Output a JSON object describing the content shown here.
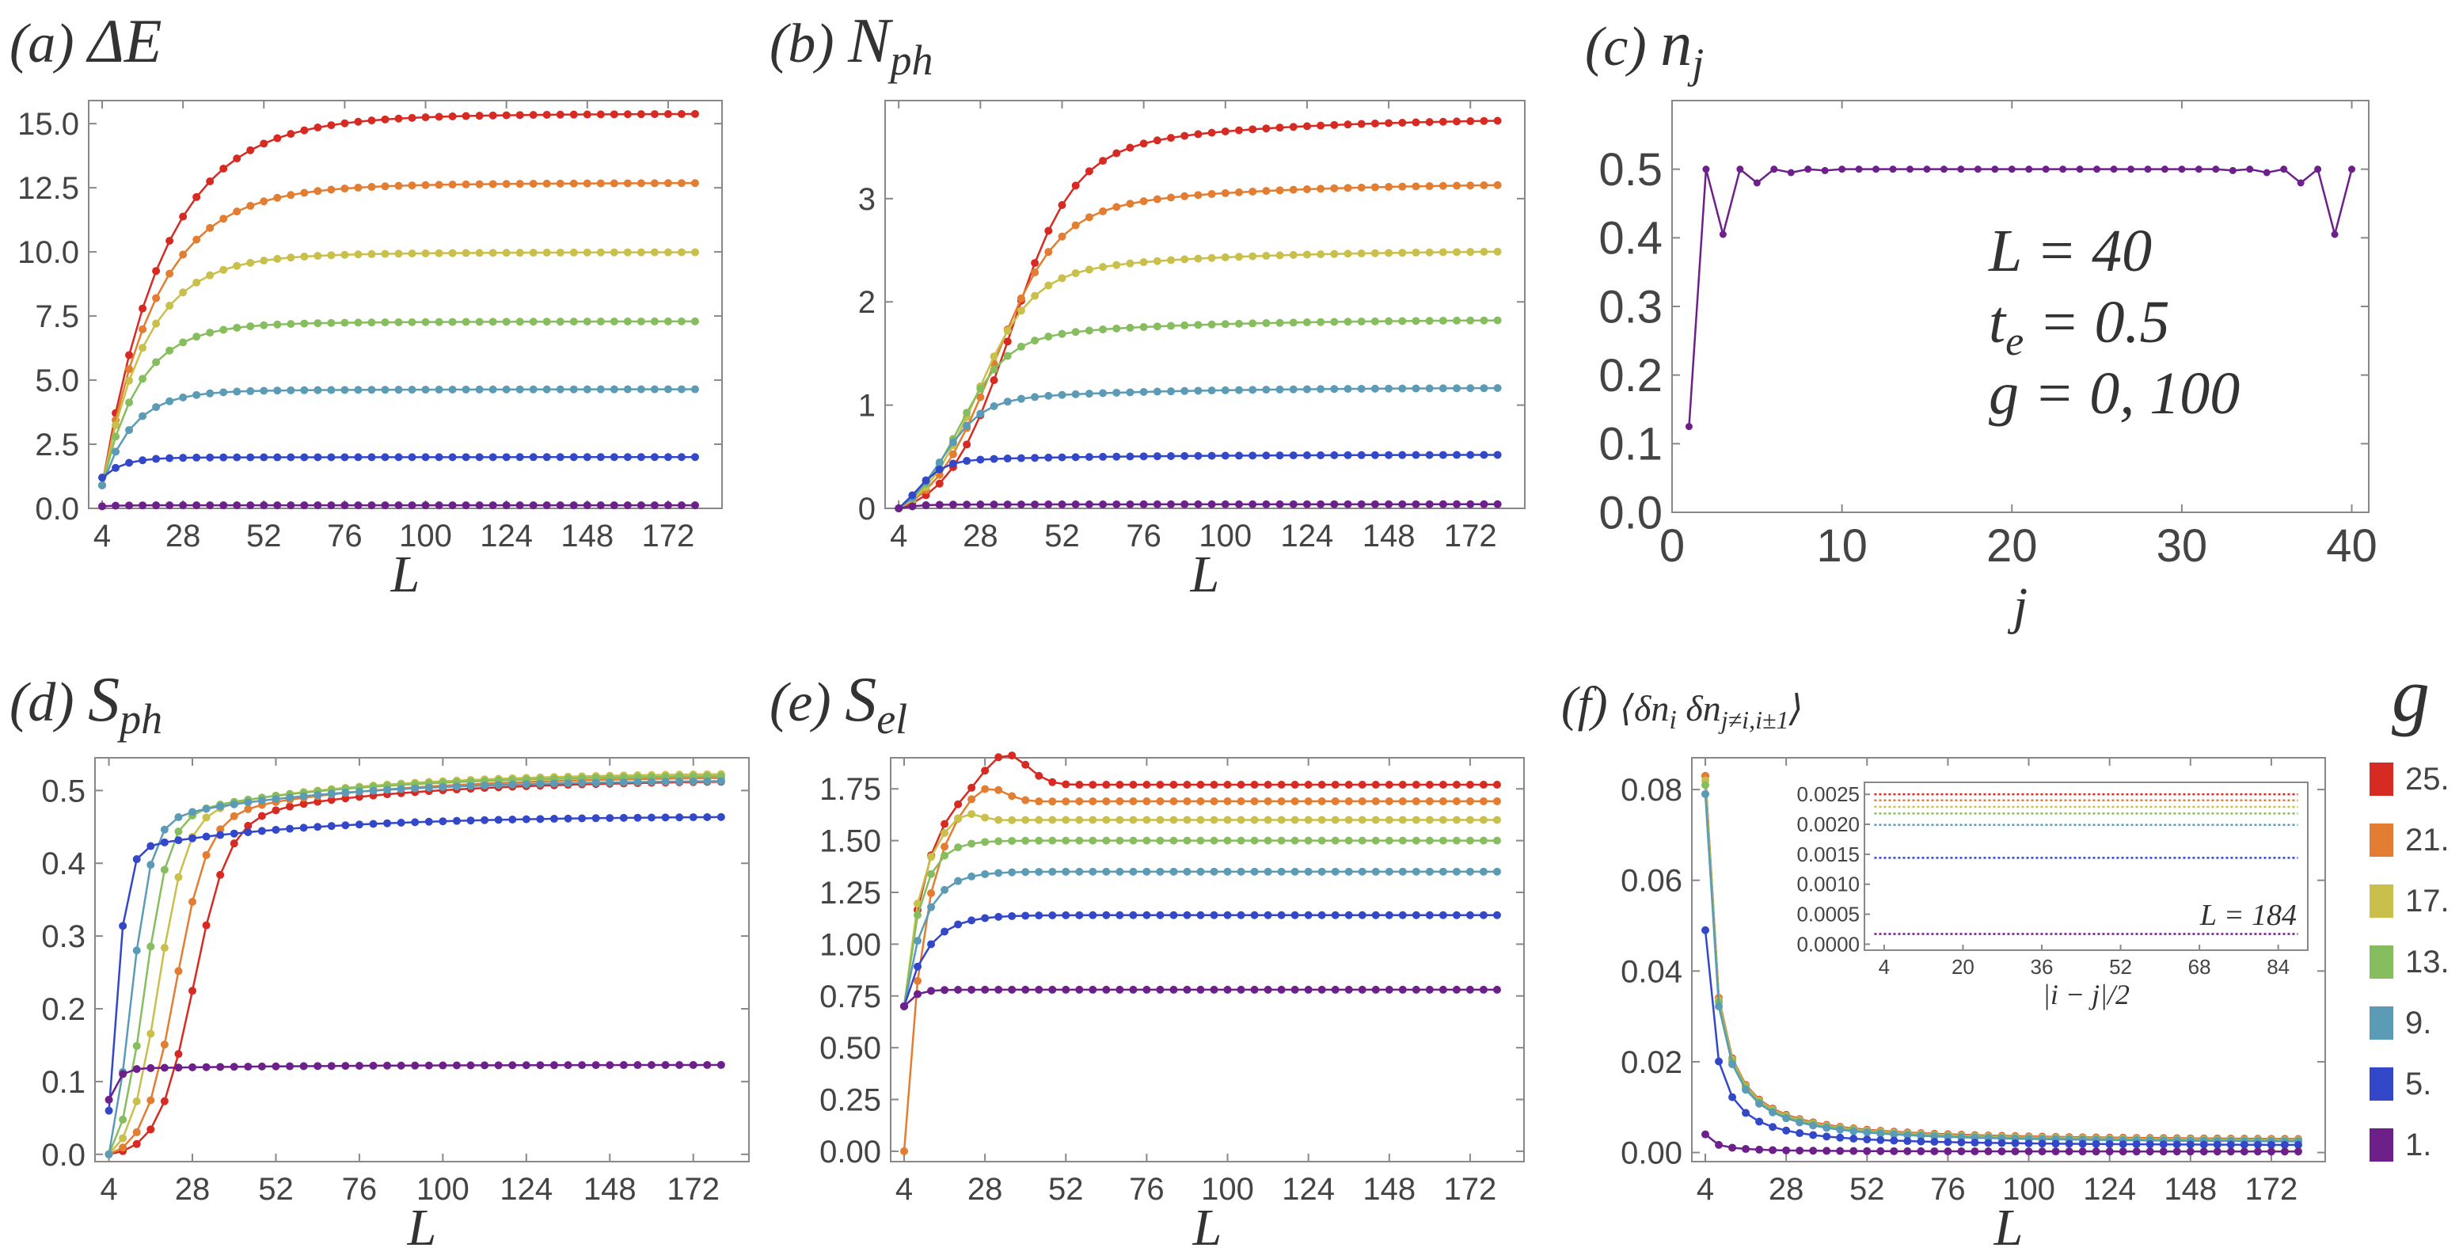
{
  "colors": {
    "c25": "#d62a22",
    "c21": "#e37d31",
    "c17": "#c9bf4b",
    "c13": "#86bd5e",
    "c9": "#5b9bb6",
    "c5": "#3347c9",
    "c1": "#6d1f8a",
    "axis": "#888888",
    "text": "#444444"
  },
  "legend": {
    "title": "g",
    "items": [
      {
        "label": "25.",
        "color": "#d62a22"
      },
      {
        "label": "21.",
        "color": "#e37d31"
      },
      {
        "label": "17.",
        "color": "#c9bf4b"
      },
      {
        "label": "13.",
        "color": "#86bd5e"
      },
      {
        "label": "9.",
        "color": "#5b9bb6"
      },
      {
        "label": "5.",
        "color": "#3347c9"
      },
      {
        "label": "1.",
        "color": "#6d1f8a"
      }
    ]
  },
  "chart_data": [
    {
      "id": "a",
      "type": "line",
      "panel_letter": "(a)",
      "title": "ΔE",
      "xlabel": "L",
      "xlim": [
        0,
        188
      ],
      "ylim": [
        0,
        15.9
      ],
      "xticks": [
        "4",
        "28",
        "52",
        "76",
        "100",
        "124",
        "148",
        "172"
      ],
      "yticks": [
        "0.0",
        "2.5",
        "5.0",
        "7.5",
        "10.0",
        "12.5",
        "15.0"
      ],
      "model": "sat",
      "series": [
        {
          "name": "25.",
          "sat": 15.4,
          "start": 0.9,
          "k": 2.2,
          "hl": 18
        },
        {
          "name": "21.",
          "sat": 12.7,
          "start": 0.9,
          "k": 2.1,
          "hl": 16
        },
        {
          "name": "17.",
          "sat": 10.0,
          "start": 0.9,
          "k": 2.0,
          "hl": 13
        },
        {
          "name": "13.",
          "sat": 7.3,
          "start": 0.9,
          "k": 1.8,
          "hl": 11
        },
        {
          "name": "9.",
          "sat": 4.65,
          "start": 0.9,
          "k": 1.6,
          "hl": 9
        },
        {
          "name": "5.",
          "sat": 2.0,
          "start": 1.2,
          "k": 1.3,
          "hl": 6
        },
        {
          "name": "1.",
          "sat": 0.12,
          "start": 0.08,
          "k": 1.0,
          "hl": 4
        }
      ]
    },
    {
      "id": "b",
      "type": "line",
      "panel_letter": "(b)",
      "title": "N",
      "title_sub": "ph",
      "xlabel": "L",
      "xlim": [
        0,
        188
      ],
      "ylim": [
        0,
        3.95
      ],
      "xticks": [
        "4",
        "28",
        "52",
        "76",
        "100",
        "124",
        "148",
        "172"
      ],
      "yticks": [
        "0",
        "1",
        "2",
        "3"
      ],
      "model": "sig",
      "series": [
        {
          "name": "25.",
          "sat": 3.78,
          "mid": 36,
          "w": 9,
          "start": 0.0
        },
        {
          "name": "21.",
          "sat": 3.15,
          "mid": 31,
          "w": 9,
          "start": 0.0
        },
        {
          "name": "17.",
          "sat": 2.5,
          "mid": 26,
          "w": 8,
          "start": 0.0
        },
        {
          "name": "13.",
          "sat": 1.83,
          "mid": 21,
          "w": 7,
          "start": 0.0
        },
        {
          "name": "9.",
          "sat": 1.17,
          "mid": 16,
          "w": 6,
          "start": 0.0
        },
        {
          "name": "5.",
          "sat": 0.52,
          "mid": 9,
          "w": 4,
          "start": 0.0
        },
        {
          "name": "1.",
          "sat": 0.04,
          "mid": 5,
          "w": 3,
          "start": 0.0
        }
      ]
    },
    {
      "id": "c",
      "type": "line",
      "panel_letter": "(c)",
      "title": "n",
      "title_sub": "j",
      "xlabel": "j",
      "xlim": [
        0,
        41
      ],
      "ylim": [
        0,
        0.6
      ],
      "xticks": [
        "0",
        "10",
        "20",
        "30",
        "40"
      ],
      "yticks": [
        "0.0",
        "0.1",
        "0.2",
        "0.3",
        "0.4",
        "0.5"
      ],
      "annotations": [
        "L = 40",
        "t",
        "e",
        " = 0.5",
        "g = 0, 100"
      ],
      "series": [
        {
          "name": "1.",
          "x": [
            1,
            2,
            3,
            4,
            5,
            6,
            7,
            8,
            9,
            10,
            11,
            12,
            13,
            14,
            15,
            16,
            17,
            18,
            19,
            20,
            21,
            22,
            23,
            24,
            25,
            26,
            27,
            28,
            29,
            30,
            31,
            32,
            33,
            34,
            35,
            36,
            37,
            38,
            39,
            40
          ],
          "y": [
            0.125,
            0.5,
            0.405,
            0.5,
            0.48,
            0.5,
            0.495,
            0.5,
            0.498,
            0.5,
            0.5,
            0.5,
            0.5,
            0.5,
            0.5,
            0.5,
            0.5,
            0.5,
            0.5,
            0.5,
            0.5,
            0.5,
            0.5,
            0.5,
            0.5,
            0.5,
            0.5,
            0.5,
            0.5,
            0.5,
            0.5,
            0.5,
            0.498,
            0.5,
            0.495,
            0.5,
            0.48,
            0.5,
            0.405,
            0.5
          ]
        }
      ]
    },
    {
      "id": "d",
      "type": "line",
      "panel_letter": "(d)",
      "title": "S",
      "title_sub": "ph",
      "xlabel": "L",
      "xlim": [
        0,
        188
      ],
      "ylim": [
        -0.01,
        0.545
      ],
      "xticks": [
        "4",
        "28",
        "52",
        "76",
        "100",
        "124",
        "148",
        "172"
      ],
      "yticks": [
        "0.0",
        "0.1",
        "0.2",
        "0.3",
        "0.4",
        "0.5"
      ],
      "model": "sig",
      "series": [
        {
          "name": "25.",
          "sat": 0.515,
          "mid": 28,
          "w": 5,
          "start": 0.0
        },
        {
          "name": "21.",
          "sat": 0.52,
          "mid": 23,
          "w": 4.5,
          "start": 0.0
        },
        {
          "name": "17.",
          "sat": 0.525,
          "mid": 18,
          "w": 4,
          "start": 0.0
        },
        {
          "name": "13.",
          "sat": 0.522,
          "mid": 14,
          "w": 3.5,
          "start": 0.0
        },
        {
          "name": "9.",
          "sat": 0.515,
          "mid": 10,
          "w": 3,
          "start": 0.0
        },
        {
          "name": "5.",
          "sat": 0.465,
          "mid": 5,
          "w": 2,
          "start": 0.06
        },
        {
          "name": "1.",
          "sat": 0.123,
          "mid": 2,
          "w": 2,
          "start": 0.075
        }
      ]
    },
    {
      "id": "e",
      "type": "line",
      "panel_letter": "(e)",
      "title": "S",
      "title_sub": "el",
      "xlabel": "L",
      "xlim": [
        0,
        188
      ],
      "ylim": [
        -0.05,
        1.9
      ],
      "xticks": [
        "4",
        "28",
        "52",
        "76",
        "100",
        "124",
        "148",
        "172"
      ],
      "yticks": [
        "0.00",
        "0.25",
        "0.50",
        "0.75",
        "1.00",
        "1.25",
        "1.50",
        "1.75"
      ],
      "model": "bump",
      "series": [
        {
          "name": "25.",
          "sat": 1.77,
          "start": 0.7,
          "hl": 7,
          "bump": 0.16,
          "bx": 34,
          "bw": 9
        },
        {
          "name": "21.",
          "sat": 1.69,
          "start": 0.0,
          "hl": 6,
          "bump": 0.09,
          "bx": 28,
          "bw": 8
        },
        {
          "name": "17.",
          "sat": 1.6,
          "start": 0.7,
          "hl": 5,
          "bump": 0.05,
          "bx": 22,
          "bw": 6
        },
        {
          "name": "13.",
          "sat": 1.5,
          "start": 0.7,
          "hl": 5,
          "bump": 0.0,
          "bx": 16,
          "bw": 5
        },
        {
          "name": "9.",
          "sat": 1.35,
          "start": 0.7,
          "hl": 6,
          "bump": 0.0,
          "bx": 10,
          "bw": 4
        },
        {
          "name": "5.",
          "sat": 1.14,
          "start": 0.7,
          "hl": 7,
          "bump": 0.0,
          "bx": 6,
          "bw": 4
        },
        {
          "name": "1.",
          "sat": 0.78,
          "start": 0.7,
          "hl": 3,
          "bump": 0.0,
          "bx": 4,
          "bw": 3
        }
      ]
    },
    {
      "id": "f",
      "type": "line",
      "panel_letter": "(f)",
      "title": "⟨δn",
      "title_sub": "i",
      "title_mid": " δn",
      "title_sub2": "j≠i,i±1",
      "title_end": "⟩",
      "xlabel": "L",
      "xlim": [
        0,
        188
      ],
      "ylim": [
        -0.002,
        0.087
      ],
      "xticks": [
        "4",
        "28",
        "52",
        "76",
        "100",
        "124",
        "148",
        "172"
      ],
      "yticks": [
        "0.00",
        "0.02",
        "0.04",
        "0.06",
        "0.08"
      ],
      "model": "decay",
      "series": [
        {
          "name": "25.",
          "a0": 0.083,
          "floor": 0.0025
        },
        {
          "name": "21.",
          "a0": 0.083,
          "floor": 0.0024
        },
        {
          "name": "17.",
          "a0": 0.082,
          "floor": 0.0023
        },
        {
          "name": "13.",
          "a0": 0.081,
          "floor": 0.0022
        },
        {
          "name": "9.",
          "a0": 0.079,
          "floor": 0.002
        },
        {
          "name": "5.",
          "a0": 0.049,
          "floor": 0.0014
        },
        {
          "name": "1.",
          "a0": 0.004,
          "floor": 0.0002
        }
      ],
      "inset": {
        "xlabel": "|i − j|/2",
        "annotation": "L = 184",
        "xlim": [
          0,
          90
        ],
        "ylim": [
          -0.0001,
          0.0027
        ],
        "xticks": [
          "4",
          "20",
          "36",
          "52",
          "68",
          "84"
        ],
        "yticks": [
          "0.0000",
          "0.0005",
          "0.0010",
          "0.0015",
          "0.0020",
          "0.0025"
        ],
        "levels": [
          {
            "name": "25.",
            "y": 0.0025
          },
          {
            "name": "21.",
            "y": 0.0024
          },
          {
            "name": "17.",
            "y": 0.00229
          },
          {
            "name": "13.",
            "y": 0.00218
          },
          {
            "name": "9.",
            "y": 0.00199
          },
          {
            "name": "5.",
            "y": 0.00144
          },
          {
            "name": "1.",
            "y": 0.00017
          }
        ]
      }
    }
  ]
}
